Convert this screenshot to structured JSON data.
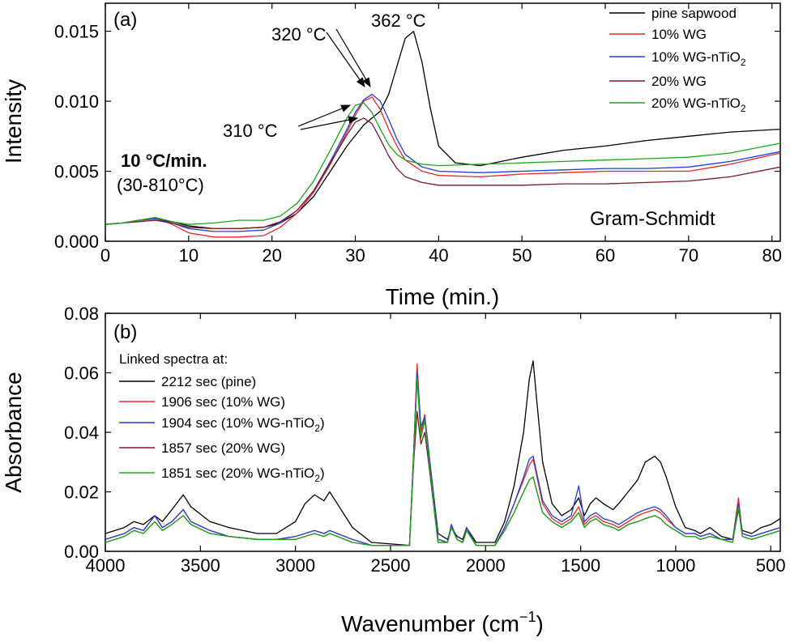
{
  "chart_data": [
    {
      "type": "line",
      "panel_label": "(a)",
      "xlabel": "Time (min.)",
      "ylabel": "Intensity",
      "xlim": [
        0,
        81
      ],
      "ylim": [
        0,
        0.017
      ],
      "xticks": [
        "0",
        "10",
        "20",
        "30",
        "40",
        "50",
        "60",
        "70",
        "80"
      ],
      "yticks": [
        "0.000",
        "0.005",
        "0.010",
        "0.015"
      ],
      "legend_position": "top-right",
      "annotations": {
        "peak_362": "362 °C",
        "peak_320": "320 °C",
        "peak_310": "310 °C",
        "rate": "10 °C/min.",
        "range": "(30-810°C)",
        "method": "Gram-Schmidt"
      },
      "series": [
        {
          "name": "pine sapwood",
          "legend_main": "pine sapwood",
          "legend_sub": "",
          "legend_tail": "",
          "color": "#000000",
          "x": [
            0,
            2,
            4,
            6,
            8,
            10,
            13,
            16,
            19,
            21,
            23,
            25,
            27,
            29,
            31,
            33,
            34,
            35,
            36,
            37,
            38,
            39,
            40,
            42,
            45,
            50,
            55,
            60,
            65,
            70,
            75,
            81
          ],
          "y": [
            0.0012,
            0.0013,
            0.0015,
            0.0016,
            0.0014,
            0.0011,
            0.0009,
            0.0009,
            0.001,
            0.0013,
            0.002,
            0.0032,
            0.005,
            0.0068,
            0.0083,
            0.0093,
            0.0105,
            0.0125,
            0.0145,
            0.015,
            0.0128,
            0.0095,
            0.0068,
            0.0056,
            0.0054,
            0.006,
            0.0065,
            0.0068,
            0.0072,
            0.0075,
            0.0078,
            0.008
          ]
        },
        {
          "name": "10% WG",
          "legend_main": "10% WG",
          "legend_sub": "",
          "legend_tail": "",
          "color": "#e8262a",
          "x": [
            0,
            2,
            4,
            6,
            8,
            10,
            13,
            16,
            19,
            21,
            23,
            25,
            27,
            29,
            30,
            31,
            32,
            33,
            34,
            35,
            36,
            38,
            40,
            45,
            50,
            55,
            60,
            65,
            70,
            75,
            81
          ],
          "y": [
            0.0012,
            0.0013,
            0.0015,
            0.0017,
            0.0012,
            0.0006,
            0.0003,
            0.0003,
            0.0004,
            0.001,
            0.002,
            0.0035,
            0.0055,
            0.0078,
            0.009,
            0.01,
            0.0103,
            0.0094,
            0.008,
            0.0068,
            0.0058,
            0.005,
            0.0047,
            0.0046,
            0.0048,
            0.0049,
            0.005,
            0.005,
            0.005,
            0.0055,
            0.0063
          ]
        },
        {
          "name": "10% WG-nTiO2",
          "legend_main": "10% WG-nTiO",
          "legend_sub": "2",
          "legend_tail": "",
          "color": "#1f3fd8",
          "x": [
            0,
            2,
            4,
            6,
            8,
            10,
            13,
            16,
            19,
            21,
            23,
            25,
            27,
            29,
            30,
            31,
            32,
            33,
            34,
            35,
            36,
            38,
            40,
            45,
            50,
            55,
            60,
            65,
            70,
            75,
            81
          ],
          "y": [
            0.0012,
            0.0013,
            0.0015,
            0.0016,
            0.0013,
            0.0009,
            0.0007,
            0.0007,
            0.0008,
            0.0013,
            0.0022,
            0.0036,
            0.0057,
            0.008,
            0.0092,
            0.0101,
            0.0105,
            0.01,
            0.0087,
            0.0073,
            0.0062,
            0.0053,
            0.005,
            0.0049,
            0.005,
            0.0051,
            0.0052,
            0.0052,
            0.0053,
            0.0057,
            0.0064
          ]
        },
        {
          "name": "20% WG",
          "legend_main": "20% WG",
          "legend_sub": "",
          "legend_tail": "",
          "color": "#7a1a2a",
          "x": [
            0,
            2,
            4,
            6,
            8,
            10,
            13,
            16,
            19,
            21,
            23,
            25,
            27,
            29,
            30,
            31,
            32,
            33,
            34,
            35,
            36,
            38,
            40,
            45,
            50,
            55,
            60,
            65,
            70,
            75,
            81
          ],
          "y": [
            0.0012,
            0.0013,
            0.0014,
            0.0015,
            0.0013,
            0.001,
            0.0009,
            0.0009,
            0.001,
            0.0014,
            0.0022,
            0.0036,
            0.0056,
            0.0076,
            0.0085,
            0.0088,
            0.0084,
            0.0073,
            0.0061,
            0.0052,
            0.0046,
            0.0042,
            0.004,
            0.004,
            0.004,
            0.0041,
            0.0041,
            0.0042,
            0.0043,
            0.0046,
            0.0053
          ]
        },
        {
          "name": "20% WG-nTiO2",
          "legend_main": "20% WG-nTiO",
          "legend_sub": "2",
          "legend_tail": "",
          "color": "#1aa81a",
          "x": [
            0,
            2,
            4,
            6,
            8,
            10,
            13,
            16,
            19,
            21,
            23,
            25,
            27,
            29,
            30,
            31,
            32,
            33,
            34,
            35,
            36,
            38,
            40,
            45,
            50,
            55,
            60,
            65,
            70,
            75,
            81
          ],
          "y": [
            0.0012,
            0.0013,
            0.0015,
            0.0017,
            0.0014,
            0.0012,
            0.0013,
            0.0015,
            0.0015,
            0.0018,
            0.0027,
            0.0043,
            0.0065,
            0.0088,
            0.0097,
            0.0099,
            0.0092,
            0.008,
            0.0069,
            0.0062,
            0.0058,
            0.0055,
            0.0054,
            0.0055,
            0.0056,
            0.0057,
            0.0058,
            0.0059,
            0.006,
            0.0063,
            0.007
          ]
        }
      ]
    },
    {
      "type": "line",
      "panel_label": "(b)",
      "xlabel": "Wavenumber (cm",
      "xlabel_sup": "−1",
      "xlabel_tail": ")",
      "ylabel": "Absorbance",
      "xlim": [
        4000,
        450
      ],
      "ylim": [
        0,
        0.08
      ],
      "xticks": [
        "4000",
        "3500",
        "3000",
        "2500",
        "2000",
        "1500",
        "1000",
        "500"
      ],
      "yticks": [
        "0.00",
        "0.02",
        "0.04",
        "0.06",
        "0.08"
      ],
      "legend_title": "Linked spectra at:",
      "legend_position": "top-left",
      "x": [
        4000,
        3900,
        3850,
        3800,
        3740,
        3700,
        3650,
        3590,
        3550,
        3450,
        3350,
        3200,
        3100,
        3000,
        2950,
        2900,
        2850,
        2820,
        2780,
        2700,
        2600,
        2400,
        2380,
        2360,
        2340,
        2320,
        2300,
        2250,
        2200,
        2180,
        2150,
        2120,
        2100,
        2050,
        1950,
        1900,
        1850,
        1800,
        1770,
        1750,
        1730,
        1700,
        1650,
        1600,
        1550,
        1510,
        1480,
        1450,
        1420,
        1380,
        1330,
        1300,
        1250,
        1200,
        1160,
        1110,
        1080,
        1050,
        1000,
        950,
        900,
        870,
        820,
        760,
        700,
        670,
        650,
        600,
        550,
        500,
        450
      ],
      "series": [
        {
          "name": "2212 sec (pine)",
          "legend_main": "2212 sec (pine)",
          "legend_sub": "",
          "legend_tail": "",
          "color": "#000000",
          "y": [
            0.006,
            0.008,
            0.01,
            0.009,
            0.012,
            0.01,
            0.014,
            0.019,
            0.015,
            0.01,
            0.008,
            0.006,
            0.006,
            0.01,
            0.016,
            0.019,
            0.017,
            0.02,
            0.016,
            0.008,
            0.003,
            0.002,
            0.03,
            0.062,
            0.04,
            0.045,
            0.034,
            0.006,
            0.004,
            0.008,
            0.005,
            0.004,
            0.008,
            0.003,
            0.003,
            0.01,
            0.022,
            0.04,
            0.058,
            0.064,
            0.05,
            0.03,
            0.016,
            0.012,
            0.014,
            0.018,
            0.012,
            0.016,
            0.018,
            0.016,
            0.014,
            0.016,
            0.02,
            0.024,
            0.03,
            0.032,
            0.03,
            0.025,
            0.015,
            0.008,
            0.007,
            0.006,
            0.008,
            0.005,
            0.004,
            0.014,
            0.007,
            0.006,
            0.008,
            0.009,
            0.011
          ]
        },
        {
          "name": "1906 sec (10% WG)",
          "legend_main": "1906 sec (10% WG)",
          "legend_sub": "",
          "legend_tail": "",
          "color": "#e8262a",
          "y": [
            0.004,
            0.006,
            0.008,
            0.007,
            0.012,
            0.008,
            0.01,
            0.014,
            0.01,
            0.007,
            0.005,
            0.004,
            0.004,
            0.005,
            0.006,
            0.007,
            0.006,
            0.007,
            0.006,
            0.004,
            0.002,
            0.002,
            0.03,
            0.063,
            0.04,
            0.046,
            0.034,
            0.004,
            0.003,
            0.009,
            0.004,
            0.003,
            0.008,
            0.002,
            0.002,
            0.008,
            0.016,
            0.024,
            0.029,
            0.031,
            0.025,
            0.016,
            0.011,
            0.009,
            0.011,
            0.015,
            0.009,
            0.011,
            0.012,
            0.01,
            0.009,
            0.008,
            0.01,
            0.012,
            0.013,
            0.014,
            0.013,
            0.011,
            0.008,
            0.006,
            0.006,
            0.005,
            0.006,
            0.004,
            0.004,
            0.018,
            0.006,
            0.005,
            0.006,
            0.007,
            0.008
          ]
        },
        {
          "name": "1904 sec (10% WG-nTiO2)",
          "legend_main": "1904 sec (10% WG-nTiO",
          "legend_sub": "2",
          "legend_tail": ")",
          "color": "#1f3fd8",
          "y": [
            0.004,
            0.006,
            0.008,
            0.007,
            0.012,
            0.008,
            0.01,
            0.014,
            0.01,
            0.007,
            0.005,
            0.004,
            0.004,
            0.005,
            0.006,
            0.007,
            0.006,
            0.007,
            0.006,
            0.004,
            0.002,
            0.002,
            0.03,
            0.06,
            0.042,
            0.045,
            0.034,
            0.004,
            0.003,
            0.009,
            0.004,
            0.003,
            0.008,
            0.002,
            0.002,
            0.008,
            0.016,
            0.025,
            0.031,
            0.032,
            0.026,
            0.017,
            0.012,
            0.01,
            0.012,
            0.022,
            0.01,
            0.012,
            0.013,
            0.011,
            0.01,
            0.009,
            0.011,
            0.013,
            0.014,
            0.015,
            0.014,
            0.012,
            0.008,
            0.006,
            0.006,
            0.005,
            0.006,
            0.004,
            0.004,
            0.016,
            0.006,
            0.005,
            0.006,
            0.007,
            0.008
          ]
        },
        {
          "name": "1857 sec (20% WG)",
          "legend_main": "1857 sec (20% WG)",
          "legend_sub": "",
          "legend_tail": "",
          "color": "#7a1a2a",
          "y": [
            0.003,
            0.005,
            0.007,
            0.006,
            0.01,
            0.007,
            0.009,
            0.012,
            0.009,
            0.006,
            0.005,
            0.004,
            0.004,
            0.004,
            0.005,
            0.006,
            0.005,
            0.006,
            0.005,
            0.003,
            0.002,
            0.002,
            0.028,
            0.047,
            0.036,
            0.04,
            0.03,
            0.003,
            0.003,
            0.008,
            0.004,
            0.003,
            0.007,
            0.002,
            0.002,
            0.007,
            0.013,
            0.02,
            0.024,
            0.025,
            0.02,
            0.013,
            0.01,
            0.008,
            0.01,
            0.013,
            0.008,
            0.01,
            0.011,
            0.009,
            0.008,
            0.007,
            0.009,
            0.01,
            0.011,
            0.012,
            0.011,
            0.009,
            0.007,
            0.005,
            0.005,
            0.004,
            0.005,
            0.004,
            0.003,
            0.015,
            0.005,
            0.004,
            0.005,
            0.006,
            0.007
          ]
        },
        {
          "name": "1851 sec (20% WG-nTiO2)",
          "legend_main": "1851 sec (20% WG-nTiO",
          "legend_sub": "2",
          "legend_tail": ")",
          "color": "#1aa81a",
          "y": [
            0.003,
            0.005,
            0.007,
            0.006,
            0.01,
            0.007,
            0.009,
            0.012,
            0.009,
            0.006,
            0.005,
            0.004,
            0.004,
            0.004,
            0.005,
            0.006,
            0.005,
            0.006,
            0.005,
            0.003,
            0.002,
            0.002,
            0.028,
            0.058,
            0.038,
            0.044,
            0.032,
            0.003,
            0.003,
            0.008,
            0.004,
            0.003,
            0.007,
            0.002,
            0.002,
            0.007,
            0.013,
            0.02,
            0.024,
            0.025,
            0.02,
            0.013,
            0.01,
            0.008,
            0.01,
            0.013,
            0.008,
            0.01,
            0.011,
            0.009,
            0.008,
            0.007,
            0.009,
            0.01,
            0.011,
            0.012,
            0.011,
            0.009,
            0.007,
            0.005,
            0.005,
            0.004,
            0.005,
            0.004,
            0.003,
            0.015,
            0.005,
            0.004,
            0.005,
            0.006,
            0.007
          ]
        }
      ]
    }
  ]
}
